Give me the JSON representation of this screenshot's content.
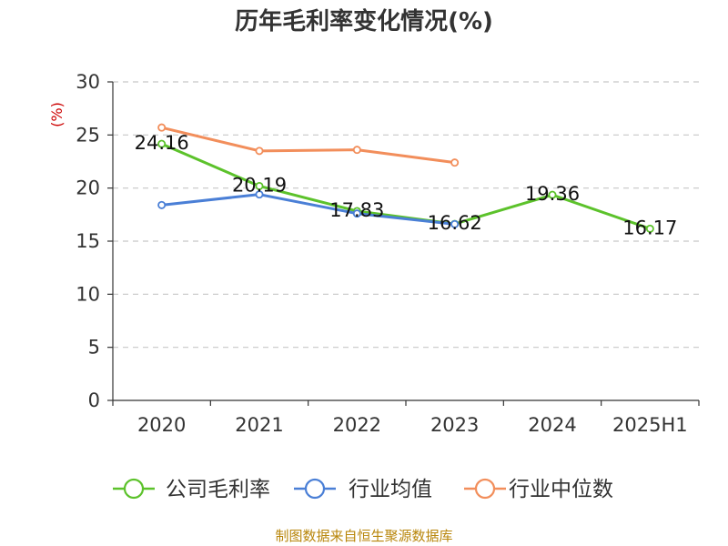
{
  "chart_data": {
    "type": "line",
    "title": "历年毛利率变化情况(%)",
    "ylabel": "(%)",
    "xlabel": "",
    "categories": [
      "2020",
      "2021",
      "2022",
      "2023",
      "2024",
      "2025H1"
    ],
    "ylim": [
      0,
      30
    ],
    "yticks": [
      "0",
      "5",
      "10",
      "15",
      "20",
      "25",
      "30"
    ],
    "grid": true,
    "legend_position": "bottom",
    "series": [
      {
        "name": "公司毛利率",
        "color": "#5cc22b",
        "values": [
          24.16,
          20.19,
          17.83,
          16.62,
          19.36,
          16.17
        ],
        "labels": [
          "24.16",
          "20.19",
          "17.83",
          "16.62",
          "19.36",
          "16.17"
        ]
      },
      {
        "name": "行业均值",
        "color": "#4a7fd6",
        "values": [
          18.4,
          19.4,
          17.6,
          16.6,
          null,
          null
        ]
      },
      {
        "name": "行业中位数",
        "color": "#f28e5b",
        "values": [
          25.7,
          23.5,
          23.6,
          22.4,
          null,
          null
        ]
      }
    ],
    "source": "制图数据来自恒生聚源数据库"
  }
}
